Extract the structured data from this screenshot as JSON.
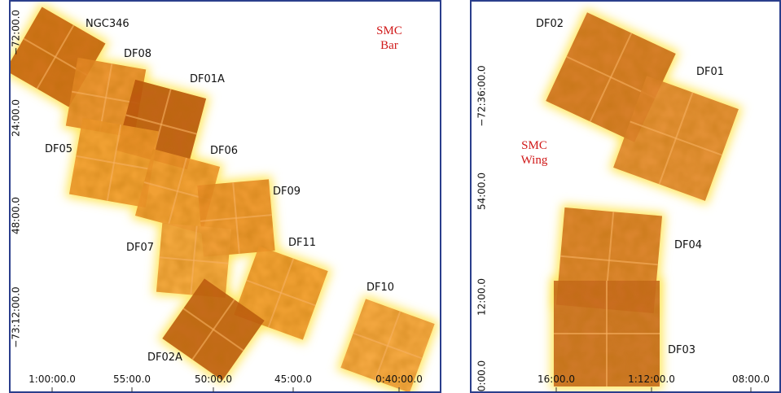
{
  "panels": [
    {
      "title_lines": [
        "SMC",
        "Bar"
      ],
      "y_labels": [
        "−72:00.0",
        "24:00.0",
        "48:00.0",
        "−73:12:00.0"
      ],
      "x_labels": [
        "1:00:00.0",
        "55:00.0",
        "50:00.0",
        "45:00.0",
        "0:40:00.0"
      ],
      "fields": [
        "NGC346",
        "DF08",
        "DF01A",
        "DF05",
        "DF06",
        "DF09",
        "DF07",
        "DF11",
        "DF10",
        "DF02A"
      ]
    },
    {
      "title_lines": [
        "SMC",
        "Wing"
      ],
      "y_labels": [
        "−72:36:00.0",
        "54:00.0",
        "12:00.0",
        "0:00.0"
      ],
      "x_labels": [
        "16:00.0",
        "1:12:00.0",
        "08:00.0"
      ],
      "fields": [
        "DF02",
        "DF01",
        "DF04",
        "DF03"
      ]
    }
  ]
}
